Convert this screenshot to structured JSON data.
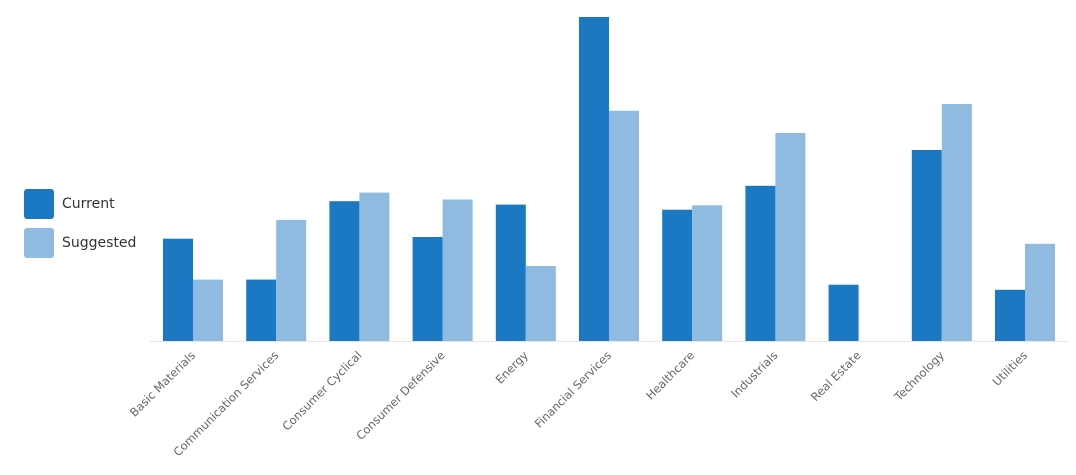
{
  "chart_data": {
    "type": "bar",
    "title": "",
    "xlabel": "",
    "ylabel": "",
    "categories": [
      "Basic Materials",
      "Communication Services",
      "Consumer Cyclical",
      "Consumer Defensive",
      "Energy",
      "Financial Services",
      "Healthcare",
      "Industrials",
      "Real Estate",
      "Technology",
      "Utilities"
    ],
    "series": [
      {
        "name": "Current",
        "color": "#1b78c2",
        "values": [
          3.0,
          1.8,
          4.1,
          3.05,
          4.0,
          9.5,
          3.85,
          4.55,
          1.65,
          5.6,
          1.5
        ]
      },
      {
        "name": "Suggested",
        "color": "#8fbbe0",
        "values": [
          1.8,
          3.55,
          4.35,
          4.15,
          2.2,
          6.75,
          3.98,
          6.1,
          0,
          6.95,
          2.85
        ]
      }
    ],
    "ylim": [
      0,
      9.5
    ],
    "grid": false,
    "legend_position": "left",
    "y_axis_visible": false,
    "baseline_color": "#e6e6e6"
  }
}
